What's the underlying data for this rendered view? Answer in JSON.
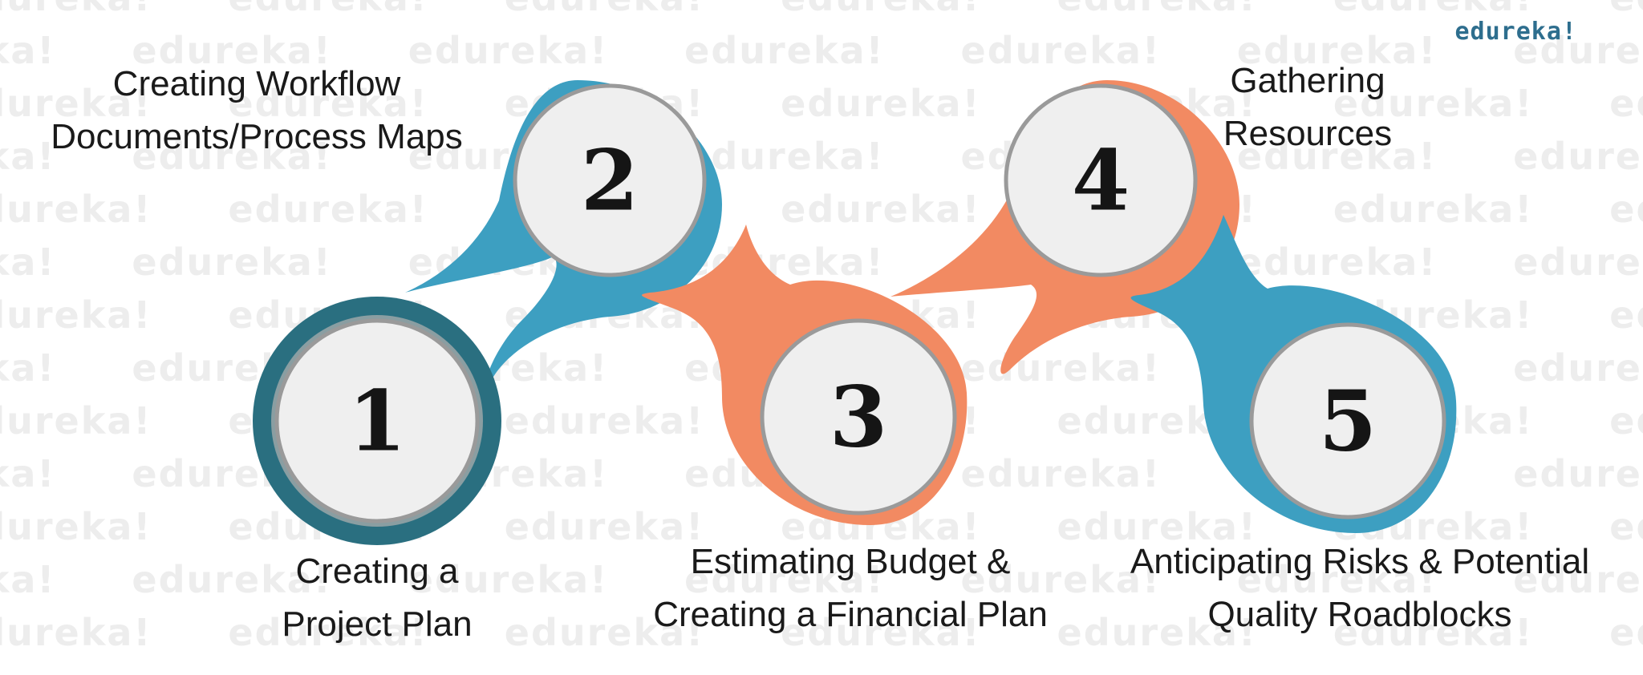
{
  "logo": "edureka!",
  "watermark": {
    "text": "edureka!"
  },
  "colors": {
    "blue": "#3d9fc1",
    "dark_teal": "#2a6f80",
    "orange": "#f28a62",
    "circle_fill": "#efefef",
    "circle_ring": "#9a9a9a",
    "text": "#1a1a1a"
  },
  "steps": [
    {
      "number": "1",
      "label_lines": [
        "Creating a",
        "Project Plan"
      ],
      "color": "dark_teal"
    },
    {
      "number": "2",
      "label_lines": [
        "Creating Workflow",
        "Documents/Process Maps"
      ],
      "color": "blue"
    },
    {
      "number": "3",
      "label_lines": [
        "Estimating Budget &",
        "Creating a Financial Plan"
      ],
      "color": "orange"
    },
    {
      "number": "4",
      "label_lines": [
        "Gathering",
        "Resources"
      ],
      "color": "orange"
    },
    {
      "number": "5",
      "label_lines": [
        "Anticipating Risks & Potential",
        "Quality Roadblocks"
      ],
      "color": "blue"
    }
  ]
}
